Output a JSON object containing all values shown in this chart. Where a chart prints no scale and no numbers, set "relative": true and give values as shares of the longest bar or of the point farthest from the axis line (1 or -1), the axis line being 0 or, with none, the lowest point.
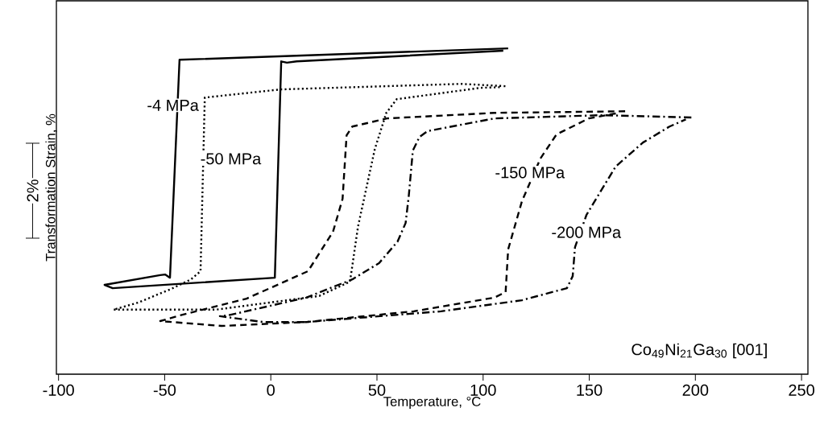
{
  "chart_data": {
    "type": "line",
    "relative": true,
    "xlabel": "Temperature, °C",
    "ylabel": "Transformation Strain, %",
    "xlim": [
      -101,
      253
    ],
    "xticks": [
      -100,
      -50,
      0,
      50,
      100,
      150,
      200,
      250
    ],
    "tick_labels": "x",
    "grid": false,
    "legend": false,
    "marker": "none",
    "annotations": [
      "2%",
      "Co$_{49}$Ni$_{21}$Ga$_{30}$ [001]"
    ],
    "series": [
      {
        "name": "-4 MPa",
        "color": "#000000",
        "line_style": "solid",
        "x": [
          111.8,
          -43.0,
          -47.5,
          -49.8,
          -52.1,
          -78.3,
          -74.5,
          1.9,
          4.9,
          7.6,
          12.2,
          109.5
        ],
        "values": [
          1.0,
          0.965,
          0.296,
          0.306,
          0.304,
          0.274,
          0.264,
          0.296,
          0.96,
          0.956,
          0.96,
          0.993
        ]
      },
      {
        "name": "-50 MPa",
        "color": "#000000",
        "line_style": "dotted",
        "x": [
          110.5,
          89.7,
          4.6,
          -31.1,
          -33.1,
          -37.6,
          -46.8,
          -62.4,
          -74.1,
          -25.9,
          22.8,
          37.3,
          41.1,
          49.0,
          54.4,
          59.3,
          98.9,
          108.5
        ],
        "values": [
          0.884,
          0.891,
          0.874,
          0.849,
          0.316,
          0.291,
          0.262,
          0.22,
          0.198,
          0.198,
          0.24,
          0.284,
          0.454,
          0.691,
          0.802,
          0.844,
          0.879,
          0.881
        ]
      },
      {
        "name": "-150 MPa",
        "color": "#000000",
        "line_style": "dashed",
        "x": [
          166.9,
          105.3,
          54.8,
          38.4,
          35.7,
          33.8,
          29.3,
          17.5,
          -11.4,
          -43.0,
          -52.1,
          -23.2,
          16.7,
          67.3,
          105.3,
          110.6,
          111.8,
          118.3,
          127.0,
          134.6,
          149.8,
          164.0
        ],
        "values": [
          0.807,
          0.802,
          0.785,
          0.76,
          0.733,
          0.538,
          0.437,
          0.316,
          0.232,
          0.18,
          0.163,
          0.148,
          0.16,
          0.193,
          0.235,
          0.252,
          0.383,
          0.531,
          0.662,
          0.736,
          0.785,
          0.802
        ]
      },
      {
        "name": "-200 MPa",
        "color": "#000000",
        "line_style": "dashdot",
        "x": [
          198.1,
          156.3,
          105.3,
          73.8,
          70.0,
          66.9,
          65.0,
          63.5,
          59.7,
          51.0,
          38.4,
          16.7,
          -20.5,
          -24.0,
          -3.4,
          16.7,
          80.2,
          118.3,
          139.5,
          142.2,
          143.3,
          148.7,
          162.4,
          175.3,
          187.8,
          195.5
        ],
        "values": [
          0.788,
          0.795,
          0.785,
          0.746,
          0.728,
          0.686,
          0.548,
          0.464,
          0.407,
          0.341,
          0.291,
          0.235,
          0.18,
          0.178,
          0.16,
          0.16,
          0.193,
          0.227,
          0.264,
          0.301,
          0.39,
          0.489,
          0.637,
          0.711,
          0.76,
          0.782
        ]
      }
    ]
  }
}
